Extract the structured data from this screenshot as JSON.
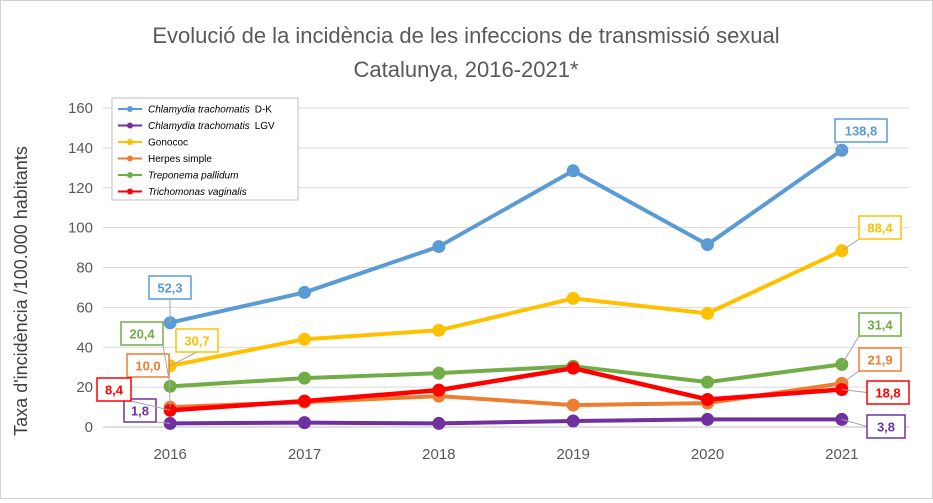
{
  "chart_data": {
    "type": "line",
    "title": "Evolució de la incidència de les infeccions de transmissió sexual",
    "subtitle": "Catalunya, 2016-2021*",
    "ylabel": "Taxa d'incidència /100.000 habitants",
    "xlabel": "",
    "categories": [
      "2016",
      "2017",
      "2018",
      "2019",
      "2020",
      "2021"
    ],
    "ylim": [
      0,
      160
    ],
    "yticks": [
      0,
      20,
      40,
      60,
      80,
      100,
      120,
      140,
      160
    ],
    "grid": true,
    "legend_position": "top-left",
    "series": [
      {
        "name": "Chlamydia trachomatis",
        "suffix": "D-K",
        "italic": true,
        "color": "#5b9bd5",
        "values": [
          52.3,
          67.5,
          90.5,
          128.5,
          91.5,
          138.8
        ],
        "labels": [
          {
            "index": 0,
            "text": "52,3"
          },
          {
            "index": 5,
            "text": "138,8"
          }
        ]
      },
      {
        "name": "Chlamydia trachomatis",
        "suffix": "LGV",
        "italic": true,
        "color": "#7030a0",
        "values": [
          1.8,
          2.2,
          1.8,
          3.0,
          3.8,
          3.8
        ],
        "labels": [
          {
            "index": 0,
            "text": "1,8"
          },
          {
            "index": 5,
            "text": "3,8"
          }
        ]
      },
      {
        "name": "Gonococ",
        "suffix": "",
        "italic": false,
        "color": "#ffc000",
        "values": [
          30.7,
          44.0,
          48.5,
          64.5,
          57.0,
          88.4
        ],
        "labels": [
          {
            "index": 0,
            "text": "30,7"
          },
          {
            "index": 5,
            "text": "88,4"
          }
        ]
      },
      {
        "name": "Herpes simple",
        "suffix": "",
        "italic": false,
        "color": "#ed7d31",
        "values": [
          10.0,
          12.5,
          15.5,
          11.0,
          12.0,
          21.9
        ],
        "labels": [
          {
            "index": 0,
            "text": "10,0"
          },
          {
            "index": 5,
            "text": "21,9"
          }
        ]
      },
      {
        "name": "Treponema pallidum",
        "suffix": "",
        "italic": true,
        "color": "#70ad47",
        "values": [
          20.4,
          24.5,
          27.0,
          30.5,
          22.5,
          31.4
        ],
        "labels": [
          {
            "index": 0,
            "text": "20,4"
          },
          {
            "index": 5,
            "text": "31,4"
          }
        ]
      },
      {
        "name": "Trichomonas vaginalis",
        "suffix": "",
        "italic": true,
        "color": "#ff0000",
        "values": [
          8.4,
          13.0,
          18.5,
          29.5,
          13.8,
          18.8
        ],
        "labels": [
          {
            "index": 0,
            "text": "8,4"
          },
          {
            "index": 5,
            "text": "18,8"
          }
        ]
      }
    ]
  }
}
